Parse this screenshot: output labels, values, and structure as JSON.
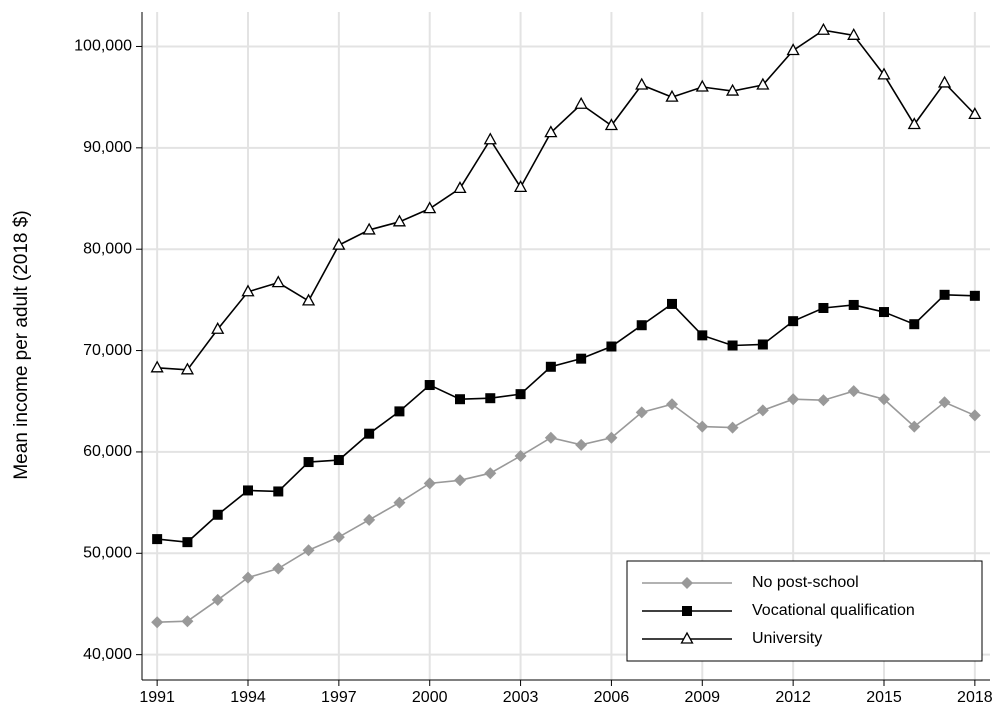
{
  "chart_data": {
    "type": "line",
    "ylabel": "Mean  income per adult (2018 $)",
    "x": [
      1991,
      1992,
      1993,
      1994,
      1995,
      1996,
      1997,
      1998,
      1999,
      2000,
      2001,
      2002,
      2003,
      2004,
      2005,
      2006,
      2007,
      2008,
      2009,
      2010,
      2011,
      2012,
      2013,
      2014,
      2015,
      2016,
      2017,
      2018
    ],
    "xlim": [
      1990.5,
      2018.5
    ],
    "xticks": [
      1991,
      1994,
      1997,
      2000,
      2003,
      2006,
      2009,
      2012,
      2015,
      2018
    ],
    "ylim": [
      37500,
      103400
    ],
    "yticks": [
      {
        "value": 40000,
        "label": "40,000"
      },
      {
        "value": 50000,
        "label": "50,000"
      },
      {
        "value": 60000,
        "label": "60,000"
      },
      {
        "value": 70000,
        "label": "70,000"
      },
      {
        "value": 80000,
        "label": "80,000"
      },
      {
        "value": 90000,
        "label": "90,000"
      },
      {
        "value": 100000,
        "label": "100,000"
      }
    ],
    "grid": true,
    "legend": "lower right",
    "series": [
      {
        "name": "No post-school",
        "color": "#999999",
        "marker": "diamond",
        "values": [
          43200,
          43300,
          45400,
          47600,
          48500,
          50300,
          51600,
          53300,
          55000,
          56900,
          57200,
          57900,
          59600,
          61400,
          60700,
          61400,
          63900,
          64700,
          62500,
          62400,
          64100,
          65200,
          65100,
          66000,
          65200,
          62500,
          64900,
          63600
        ]
      },
      {
        "name": "Vocational qualification",
        "color": "#000000",
        "marker": "square",
        "values": [
          51400,
          51100,
          53800,
          56200,
          56100,
          59000,
          59200,
          61800,
          64000,
          66600,
          65200,
          65300,
          65700,
          68400,
          69200,
          70400,
          72500,
          74600,
          71500,
          70500,
          70600,
          72900,
          74200,
          74500,
          73800,
          72600,
          75500,
          75400
        ]
      },
      {
        "name": "University",
        "color": "#000000",
        "marker": "triangle",
        "values": [
          68300,
          68100,
          72100,
          75800,
          76700,
          74900,
          80400,
          81900,
          82700,
          84000,
          86000,
          90800,
          86100,
          91500,
          94300,
          92200,
          96200,
          95000,
          96000,
          95600,
          96200,
          99600,
          101600,
          101100,
          97200,
          92300,
          96400,
          93300
        ]
      }
    ]
  }
}
